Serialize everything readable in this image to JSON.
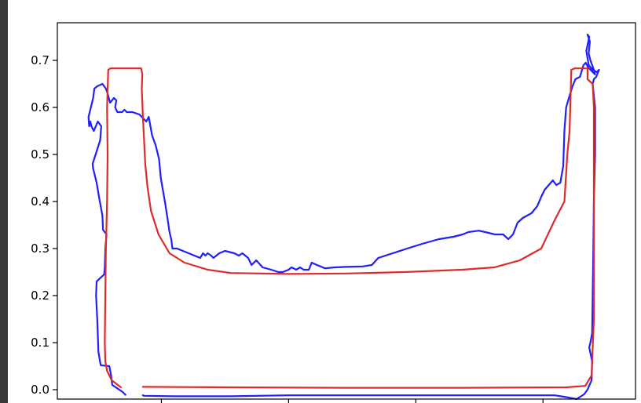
{
  "theme": {
    "frame_color": "#000000",
    "left_strip_color": "#383838",
    "background_color": "#ffffff"
  },
  "chart_data": {
    "type": "line",
    "title": "",
    "xlabel": "",
    "ylabel": "",
    "xlim": [
      0,
      100
    ],
    "ylim": [
      -0.02,
      0.78
    ],
    "grid": false,
    "legend": "none",
    "y_ticks": [
      0.0,
      0.1,
      0.2,
      0.3,
      0.4,
      0.5,
      0.6,
      0.7
    ],
    "y_tick_labels": [
      "0.0",
      "0.1",
      "0.2",
      "0.3",
      "0.4",
      "0.5",
      "0.6",
      "0.7"
    ],
    "x_ticks": [
      18,
      40,
      62,
      84,
      106
    ],
    "x_tick_labels": [],
    "series": [
      {
        "color": "#1f1fff",
        "points": [
          [
            11.8,
            -0.011
          ],
          [
            11.3,
            -0.005
          ],
          [
            10.7,
            0.0
          ],
          [
            9.5,
            0.01
          ],
          [
            9.3,
            0.03
          ],
          [
            9.0,
            0.05
          ],
          [
            7.5,
            0.052
          ],
          [
            7.1,
            0.08
          ],
          [
            6.9,
            0.15
          ],
          [
            6.7,
            0.2
          ],
          [
            6.8,
            0.23
          ],
          [
            8.1,
            0.245
          ],
          [
            8.2,
            0.26
          ],
          [
            8.3,
            0.3
          ],
          [
            8.5,
            0.33
          ],
          [
            7.9,
            0.34
          ],
          [
            7.8,
            0.37
          ],
          [
            7.2,
            0.41
          ],
          [
            6.8,
            0.44
          ],
          [
            6.2,
            0.47
          ],
          [
            6.1,
            0.48
          ],
          [
            7.4,
            0.53
          ],
          [
            7.6,
            0.56
          ],
          [
            7.0,
            0.57
          ],
          [
            6.3,
            0.55
          ],
          [
            5.9,
            0.56
          ],
          [
            5.7,
            0.57
          ],
          [
            5.5,
            0.56
          ],
          [
            5.4,
            0.58
          ],
          [
            5.8,
            0.6
          ],
          [
            6.2,
            0.62
          ],
          [
            6.4,
            0.64
          ],
          [
            6.9,
            0.645
          ],
          [
            7.8,
            0.65
          ],
          [
            8.4,
            0.64
          ],
          [
            8.7,
            0.63
          ],
          [
            9.1,
            0.61
          ],
          [
            9.8,
            0.62
          ],
          [
            10.2,
            0.615
          ],
          [
            10.0,
            0.6
          ],
          [
            10.4,
            0.59
          ],
          [
            11.2,
            0.59
          ],
          [
            11.6,
            0.595
          ],
          [
            12.0,
            0.59
          ],
          [
            13.0,
            0.59
          ],
          [
            14.2,
            0.585
          ],
          [
            15.4,
            0.57
          ],
          [
            15.8,
            0.58
          ],
          [
            16.4,
            0.54
          ],
          [
            17.0,
            0.52
          ],
          [
            17.6,
            0.49
          ],
          [
            17.9,
            0.45
          ],
          [
            18.6,
            0.4
          ],
          [
            19.1,
            0.36
          ],
          [
            19.4,
            0.335
          ],
          [
            19.7,
            0.32
          ],
          [
            19.9,
            0.3
          ],
          [
            20.7,
            0.3
          ],
          [
            22.7,
            0.29
          ],
          [
            24.7,
            0.28
          ],
          [
            25.2,
            0.29
          ],
          [
            25.6,
            0.285
          ],
          [
            26.0,
            0.29
          ],
          [
            26.6,
            0.285
          ],
          [
            27.0,
            0.28
          ],
          [
            28.0,
            0.29
          ],
          [
            29.0,
            0.295
          ],
          [
            30.6,
            0.29
          ],
          [
            31.4,
            0.285
          ],
          [
            32.0,
            0.29
          ],
          [
            33.0,
            0.28
          ],
          [
            33.6,
            0.265
          ],
          [
            34.4,
            0.275
          ],
          [
            35.5,
            0.26
          ],
          [
            37.0,
            0.255
          ],
          [
            38.2,
            0.25
          ],
          [
            39.0,
            0.25
          ],
          [
            40.0,
            0.255
          ],
          [
            40.5,
            0.26
          ],
          [
            41.3,
            0.255
          ],
          [
            42.0,
            0.26
          ],
          [
            42.6,
            0.255
          ],
          [
            43.5,
            0.255
          ],
          [
            44.0,
            0.27
          ],
          [
            44.9,
            0.265
          ],
          [
            46.3,
            0.258
          ],
          [
            48.0,
            0.26
          ],
          [
            50.0,
            0.261
          ],
          [
            52.8,
            0.262
          ],
          [
            54.4,
            0.265
          ],
          [
            55.5,
            0.28
          ],
          [
            58.0,
            0.29
          ],
          [
            60.5,
            0.3
          ],
          [
            63.1,
            0.31
          ],
          [
            66.0,
            0.32
          ],
          [
            68.5,
            0.325
          ],
          [
            70.1,
            0.33
          ],
          [
            71.1,
            0.335
          ],
          [
            72.9,
            0.338
          ],
          [
            74.0,
            0.335
          ],
          [
            75.7,
            0.33
          ],
          [
            77.1,
            0.33
          ],
          [
            78.0,
            0.32
          ],
          [
            78.8,
            0.33
          ],
          [
            79.6,
            0.355
          ],
          [
            80.5,
            0.365
          ],
          [
            82.0,
            0.375
          ],
          [
            83.0,
            0.39
          ],
          [
            83.7,
            0.41
          ],
          [
            84.3,
            0.425
          ],
          [
            85.0,
            0.435
          ],
          [
            85.7,
            0.445
          ],
          [
            86.3,
            0.435
          ],
          [
            87.0,
            0.44
          ],
          [
            87.5,
            0.475
          ],
          [
            87.7,
            0.55
          ],
          [
            88.0,
            0.6
          ],
          [
            88.6,
            0.625
          ],
          [
            89.1,
            0.645
          ],
          [
            89.6,
            0.66
          ],
          [
            90.4,
            0.665
          ],
          [
            91.0,
            0.69
          ],
          [
            91.4,
            0.695
          ],
          [
            91.8,
            0.685
          ],
          [
            92.2,
            0.68
          ],
          [
            93.0,
            0.67
          ],
          [
            92.8,
            0.68
          ],
          [
            92.2,
            0.7
          ],
          [
            91.9,
            0.715
          ],
          [
            92.1,
            0.74
          ],
          [
            91.7,
            0.755
          ],
          [
            92.0,
            0.75
          ],
          [
            91.5,
            0.72
          ],
          [
            91.9,
            0.69
          ],
          [
            92.6,
            0.68
          ],
          [
            93.3,
            0.675
          ],
          [
            93.7,
            0.68
          ],
          [
            93.2,
            0.665
          ],
          [
            92.8,
            0.66
          ],
          [
            92.6,
            0.65
          ],
          [
            93.0,
            0.6
          ],
          [
            93.0,
            0.5
          ],
          [
            92.8,
            0.4
          ],
          [
            92.7,
            0.3
          ],
          [
            92.6,
            0.2
          ],
          [
            92.5,
            0.12
          ],
          [
            92.2,
            0.1
          ],
          [
            92.0,
            0.09
          ],
          [
            92.5,
            0.06
          ],
          [
            92.4,
            0.02
          ],
          [
            91.7,
            0.0
          ],
          [
            91.1,
            -0.01
          ],
          [
            89.8,
            -0.02
          ],
          [
            89.0,
            -0.018
          ],
          [
            87.6,
            -0.015
          ],
          [
            86.0,
            -0.012
          ],
          [
            80.0,
            -0.012
          ],
          [
            70.0,
            -0.012
          ],
          [
            60.0,
            -0.012
          ],
          [
            50.0,
            -0.012
          ],
          [
            40.0,
            -0.012
          ],
          [
            30.0,
            -0.014
          ],
          [
            20.0,
            -0.014
          ],
          [
            15.0,
            -0.013
          ],
          [
            14.8,
            -0.012
          ]
        ]
      },
      {
        "color": "#dd2b2b",
        "points": [
          [
            14.8,
            0.006
          ],
          [
            30.0,
            0.005
          ],
          [
            50.0,
            0.004
          ],
          [
            70.0,
            0.004
          ],
          [
            88.0,
            0.005
          ],
          [
            91.3,
            0.008
          ],
          [
            92.4,
            0.03
          ],
          [
            92.8,
            0.15
          ],
          [
            92.8,
            0.6
          ],
          [
            92.6,
            0.65
          ],
          [
            91.7,
            0.66
          ],
          [
            91.7,
            0.683
          ],
          [
            89.5,
            0.683
          ],
          [
            88.9,
            0.68
          ],
          [
            88.6,
            0.55
          ],
          [
            88.2,
            0.5
          ],
          [
            87.7,
            0.4
          ],
          [
            86.0,
            0.36
          ],
          [
            83.7,
            0.3
          ],
          [
            80.0,
            0.275
          ],
          [
            75.6,
            0.26
          ],
          [
            70.0,
            0.255
          ],
          [
            60.0,
            0.25
          ],
          [
            50.0,
            0.247
          ],
          [
            40.0,
            0.246
          ],
          [
            30.0,
            0.248
          ],
          [
            26.0,
            0.255
          ],
          [
            22.0,
            0.27
          ],
          [
            19.4,
            0.29
          ],
          [
            17.5,
            0.33
          ],
          [
            16.2,
            0.38
          ],
          [
            15.6,
            0.43
          ],
          [
            15.2,
            0.48
          ],
          [
            14.8,
            0.58
          ],
          [
            14.6,
            0.64
          ],
          [
            14.7,
            0.67
          ],
          [
            14.5,
            0.683
          ],
          [
            14.0,
            0.683
          ],
          [
            10.3,
            0.683
          ],
          [
            9.2,
            0.683
          ],
          [
            8.8,
            0.68
          ],
          [
            8.6,
            0.6
          ],
          [
            8.7,
            0.5
          ],
          [
            8.6,
            0.4
          ],
          [
            8.4,
            0.3
          ],
          [
            8.3,
            0.2
          ],
          [
            8.2,
            0.1
          ],
          [
            8.3,
            0.06
          ],
          [
            8.6,
            0.04
          ],
          [
            9.4,
            0.02
          ],
          [
            11.0,
            0.005
          ]
        ]
      }
    ]
  }
}
